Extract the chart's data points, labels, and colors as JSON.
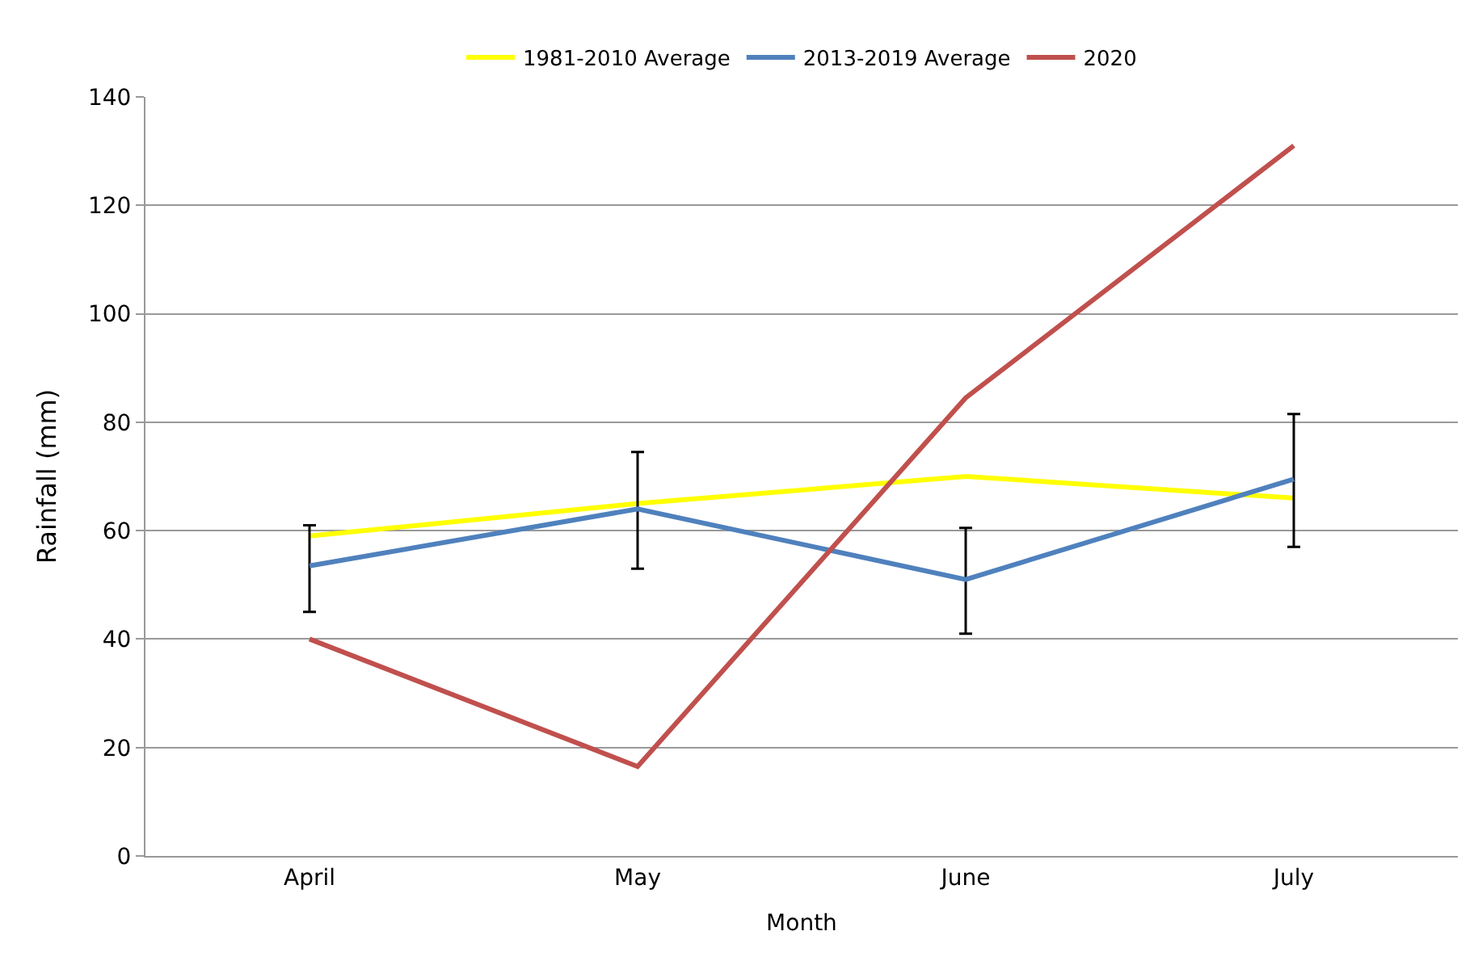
{
  "chart_data": {
    "type": "line",
    "xlabel": "Month",
    "ylabel": "Rainfall (mm)",
    "categories": [
      "April",
      "May",
      "June",
      "July"
    ],
    "ylim": [
      0,
      140
    ],
    "yticks": [
      0,
      20,
      40,
      60,
      80,
      100,
      120,
      140
    ],
    "grid": "y",
    "legend": "top",
    "marker": "none",
    "line_style": "solid",
    "series": [
      {
        "name": "1981-2010 Average",
        "color": "#ffff00",
        "values": [
          59,
          65,
          70,
          66
        ]
      },
      {
        "name": "2013-2019 Average",
        "color": "#4f81bd",
        "values": [
          53.5,
          64,
          51,
          69.5
        ],
        "errors": [
          [
            45,
            61
          ],
          [
            53,
            74.5
          ],
          [
            41,
            60.5
          ],
          [
            57,
            81.5
          ]
        ]
      },
      {
        "name": "2020",
        "color": "#c0504d",
        "values": [
          40,
          16.5,
          84.5,
          131
        ]
      }
    ]
  }
}
